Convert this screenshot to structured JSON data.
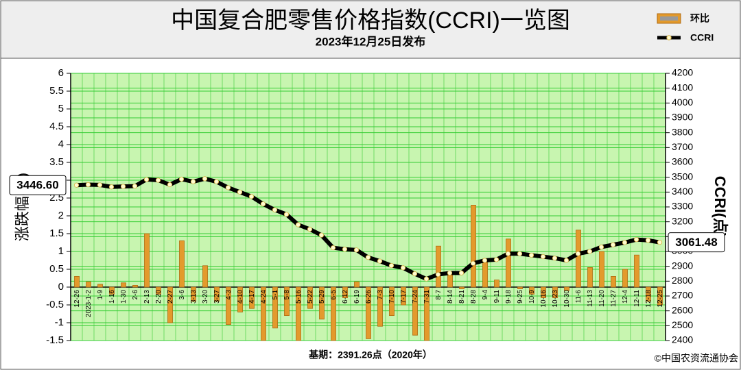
{
  "chart_data": {
    "type": "bar+line",
    "title": "中国复合肥零售价格指数(CCRI)一览图",
    "subtitle": "2023年12月25日发布",
    "ylabel": "涨跌幅(%)",
    "y2label": "CCRI(点)",
    "footer": "基期：2391.26点（2020年）",
    "source": "©中国农资流通协会",
    "legend": "upper right",
    "grid": true,
    "categories": [
      "12-26",
      "2023-1-2",
      "1-9",
      "1-16",
      "1-30",
      "2-6",
      "2-13",
      "2-20",
      "2-27",
      "3-6",
      "3-13",
      "3-20",
      "3-27",
      "4-3",
      "4-10",
      "4-17",
      "4-24",
      "5-1",
      "5-8",
      "5-16",
      "5-22",
      "5-29",
      "6-5",
      "6-12",
      "6-19",
      "6-26",
      "7-3",
      "7-10",
      "7-17",
      "7-24",
      "7-31",
      "8-7",
      "8-14",
      "8-21",
      "8-28",
      "9-4",
      "9-11",
      "9-18",
      "9-25",
      "10-9",
      "10-16",
      "10-23",
      "10-30",
      "11-6",
      "11-13",
      "11-20",
      "11-27",
      "12-4",
      "12-11",
      "12-18",
      "12-25"
    ],
    "series": [
      {
        "name": "环比",
        "type": "bar",
        "color": "#e39a2c",
        "values": [
          0.3,
          0.15,
          0.08,
          -0.2,
          0.12,
          0.05,
          1.5,
          -0.2,
          -1.0,
          1.3,
          -0.4,
          0.6,
          -0.4,
          -1.05,
          -0.7,
          -0.6,
          -1.5,
          -1.15,
          -0.8,
          -1.5,
          -0.6,
          -0.9,
          -1.5,
          -0.3,
          0.15,
          -1.45,
          -1.1,
          -0.8,
          -0.5,
          -1.35,
          -1.5,
          1.15,
          0.35,
          -0.05,
          2.3,
          0.7,
          0.2,
          1.35,
          -0.05,
          -0.2,
          -0.3,
          -0.3,
          -0.1,
          1.6,
          0.55,
          1.0,
          0.3,
          0.5,
          0.9,
          -0.4,
          -0.5
        ]
      },
      {
        "name": "CCRI",
        "type": "line",
        "axis": "y2",
        "color": "#000000",
        "values": [
          3446.6,
          3450,
          3448,
          3435,
          3438,
          3440,
          3485,
          3480,
          3450,
          3487,
          3470,
          3490,
          3470,
          3430,
          3400,
          3370,
          3320,
          3280,
          3250,
          3180,
          3150,
          3110,
          3025,
          3015,
          3010,
          2960,
          2935,
          2905,
          2890,
          2850,
          2815,
          2845,
          2855,
          2855,
          2920,
          2940,
          2945,
          2985,
          2985,
          2975,
          2965,
          2955,
          2940,
          2985,
          3000,
          3030,
          3045,
          3060,
          3080,
          3075,
          3061.48
        ],
        "value_labels": [
          "3446.60",
          null,
          null,
          null,
          null,
          null,
          null,
          null,
          null,
          null,
          null,
          null,
          null,
          null,
          null,
          null,
          null,
          null,
          null,
          null,
          null,
          null,
          null,
          null,
          null,
          null,
          null,
          null,
          null,
          null,
          null,
          null,
          null,
          null,
          null,
          null,
          null,
          null,
          null,
          null,
          null,
          null,
          null,
          null,
          null,
          null,
          null,
          null,
          null,
          null,
          "3061.48"
        ]
      }
    ],
    "ylim": [
      -1.5,
      6
    ],
    "yticks": [
      -1.5,
      -1,
      -0.5,
      0,
      0.5,
      1,
      1.5,
      2,
      2.5,
      3,
      3.5,
      4,
      4.5,
      5,
      5.5,
      6
    ],
    "y2lim": [
      2400,
      4200
    ],
    "y2ticks": [
      2400,
      2500,
      2600,
      2700,
      2800,
      2900,
      3000,
      3100,
      3200,
      3300,
      3400,
      3500,
      3600,
      3700,
      3800,
      3900,
      4000,
      4100,
      4200
    ]
  }
}
